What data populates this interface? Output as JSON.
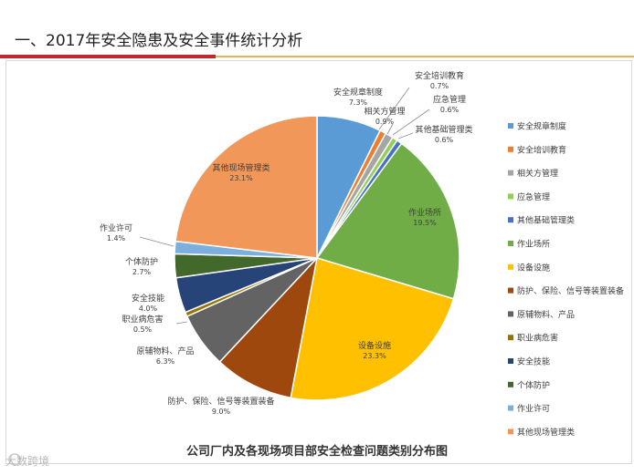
{
  "slide": {
    "title": "一、2017年安全隐患及安全事件统计分析",
    "caption": "公司厂内及各现场项目部安全检查问题类别分布图",
    "watermark": "大数跨境"
  },
  "colors": {
    "title_rule": "#c0282d",
    "title_rule_tail": "#e8b25a"
  },
  "chart_data": {
    "type": "pie",
    "title": "",
    "legend_position": "right",
    "slices": [
      {
        "label": "安全规章制度",
        "value": 7.3,
        "text": "7.3%",
        "color": "#5b9bd5"
      },
      {
        "label": "安全培训教育",
        "value": 0.7,
        "text": "0.7%",
        "color": "#ed7d31"
      },
      {
        "label": "相关方管理",
        "value": 0.9,
        "text": "0.9%",
        "color": "#a5a5a5"
      },
      {
        "label": "应急管理",
        "value": 0.6,
        "text": "0.6%",
        "color": "#92d050"
      },
      {
        "label": "其他基础管理类",
        "value": 0.6,
        "text": "0.6%",
        "color": "#4472c4"
      },
      {
        "label": "作业场所",
        "value": 19.5,
        "text": "19.5%",
        "color": "#70ad47"
      },
      {
        "label": "设备设施",
        "value": 23.3,
        "text": "23.3%",
        "color": "#ffc000"
      },
      {
        "label": "防护、保险、信号等装置装备",
        "value": 9.0,
        "text": "9.0%",
        "color": "#9e480e"
      },
      {
        "label": "原辅物料、产品",
        "value": 6.3,
        "text": "6.3%",
        "color": "#636363"
      },
      {
        "label": "职业病危害",
        "value": 0.5,
        "text": "0.5%",
        "color": "#997300"
      },
      {
        "label": "安全技能",
        "value": 4.0,
        "text": "4.0%",
        "color": "#264478"
      },
      {
        "label": "个体防护",
        "value": 2.7,
        "text": "2.7%",
        "color": "#43682b"
      },
      {
        "label": "作业许可",
        "value": 1.4,
        "text": "1.4%",
        "color": "#7cafdd"
      },
      {
        "label": "其他现场管理类",
        "value": 23.1,
        "text": "23.1%",
        "color": "#f1975a"
      }
    ]
  }
}
